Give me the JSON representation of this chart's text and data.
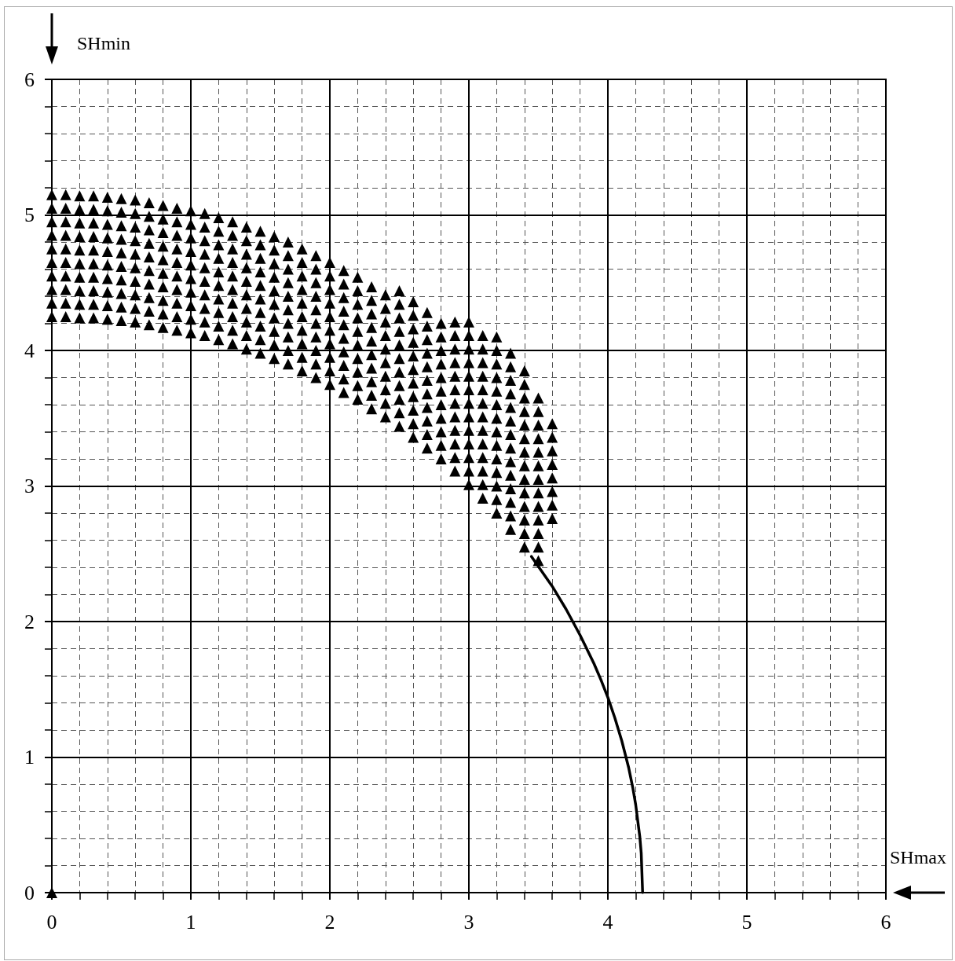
{
  "chart_data": {
    "type": "scatter",
    "xlabel": "SHmax",
    "ylabel": "SHmin",
    "xlim": [
      0,
      6
    ],
    "ylim": [
      0,
      6
    ],
    "xticks": [
      0,
      {
        "value": 0.2,
        "label": null
      },
      {
        "value": 0.4,
        "label": null
      },
      {
        "value": 0.6,
        "label": null
      },
      {
        "value": 0.8,
        "label": null
      },
      1,
      {
        "value": 1.2,
        "label": null
      },
      {
        "value": 1.4,
        "label": null
      },
      {
        "value": 1.6,
        "label": null
      },
      {
        "value": 1.8,
        "label": null
      },
      2,
      {
        "value": 2.2,
        "label": null
      },
      {
        "value": 2.4,
        "label": null
      },
      {
        "value": 2.6,
        "label": null
      },
      {
        "value": 2.8,
        "label": null
      },
      3,
      {
        "value": 3.2,
        "label": null
      },
      {
        "value": 3.4,
        "label": null
      },
      {
        "value": 3.6,
        "label": null
      },
      {
        "value": 3.8,
        "label": null
      },
      4,
      {
        "value": 4.2,
        "label": null
      },
      {
        "value": 4.4,
        "label": null
      },
      {
        "value": 4.6,
        "label": null
      },
      {
        "value": 4.8,
        "label": null
      },
      5,
      {
        "value": 5.2,
        "label": null
      },
      {
        "value": 5.4,
        "label": null
      },
      {
        "value": 5.6,
        "label": null
      },
      {
        "value": 5.8,
        "label": null
      },
      6
    ],
    "yticks": [
      0,
      {
        "value": 0.2,
        "label": null
      },
      {
        "value": 0.4,
        "label": null
      },
      {
        "value": 0.6,
        "label": null
      },
      {
        "value": 0.8,
        "label": null
      },
      1,
      {
        "value": 1.2,
        "label": null
      },
      {
        "value": 1.4,
        "label": null
      },
      {
        "value": 1.6,
        "label": null
      },
      {
        "value": 1.8,
        "label": null
      },
      2,
      {
        "value": 2.2,
        "label": null
      },
      {
        "value": 2.4,
        "label": null
      },
      {
        "value": 2.6,
        "label": null
      },
      {
        "value": 2.8,
        "label": null
      },
      3,
      {
        "value": 3.2,
        "label": null
      },
      {
        "value": 3.4,
        "label": null
      },
      {
        "value": 3.6,
        "label": null
      },
      {
        "value": 3.8,
        "label": null
      },
      4,
      {
        "value": 4.2,
        "label": null
      },
      {
        "value": 4.4,
        "label": null
      },
      {
        "value": 4.6,
        "label": null
      },
      {
        "value": 4.8,
        "label": null
      },
      5,
      {
        "value": 5.2,
        "label": null
      },
      {
        "value": 5.4,
        "label": null
      },
      {
        "value": 5.6,
        "label": null
      },
      {
        "value": 5.8,
        "label": null
      },
      6
    ],
    "grid": true,
    "series": [
      {
        "type": "line",
        "color": "#000000",
        "marker": "none",
        "line_style": "solid",
        "x": [
          3.45,
          3.6,
          3.7,
          3.8,
          3.9,
          3.95,
          4,
          4.05,
          4.1,
          4.15,
          4.18,
          4.2,
          4.23,
          4.24,
          4.25
        ],
        "values": [
          2.48,
          2.26,
          2.09,
          1.9,
          1.69,
          1.57,
          1.44,
          1.29,
          1.12,
          0.92,
          0.77,
          0.65,
          0.41,
          0.29,
          0
        ]
      },
      {
        "color": "#000000",
        "marker": "triangle",
        "x": [
          0,
          0,
          0,
          0,
          0,
          0,
          0,
          0,
          0,
          0,
          0,
          0.1,
          0.1,
          0.1,
          0.1,
          0.1,
          0.1,
          0.1,
          0.1,
          0.1,
          0.1,
          0.2,
          0.2,
          0.2,
          0.2,
          0.2,
          0.2,
          0.2,
          0.2,
          0.2,
          0.2,
          0.3,
          0.3,
          0.3,
          0.3,
          0.3,
          0.3,
          0.3,
          0.3,
          0.3,
          0.3,
          0.4,
          0.4,
          0.4,
          0.4,
          0.4,
          0.4,
          0.4,
          0.4,
          0.4,
          0.4,
          0.5,
          0.5,
          0.5,
          0.5,
          0.5,
          0.5,
          0.5,
          0.5,
          0.5,
          0.5,
          0.6,
          0.6,
          0.6,
          0.6,
          0.6,
          0.6,
          0.6,
          0.6,
          0.6,
          0.6,
          0.7,
          0.7,
          0.7,
          0.7,
          0.7,
          0.7,
          0.7,
          0.7,
          0.7,
          0.7,
          0.8,
          0.8,
          0.8,
          0.8,
          0.8,
          0.8,
          0.8,
          0.8,
          0.8,
          0.8,
          0.9,
          0.9,
          0.9,
          0.9,
          0.9,
          0.9,
          0.9,
          0.9,
          0.9,
          0.9,
          1,
          1,
          1,
          1,
          1,
          1,
          1,
          1,
          1,
          1,
          1.1,
          1.1,
          1.1,
          1.1,
          1.1,
          1.1,
          1.1,
          1.1,
          1.1,
          1.1,
          1.2,
          1.2,
          1.2,
          1.2,
          1.2,
          1.2,
          1.2,
          1.2,
          1.2,
          1.2,
          1.3,
          1.3,
          1.3,
          1.3,
          1.3,
          1.3,
          1.3,
          1.3,
          1.3,
          1.3,
          1.4,
          1.4,
          1.4,
          1.4,
          1.4,
          1.4,
          1.4,
          1.4,
          1.4,
          1.4,
          1.5,
          1.5,
          1.5,
          1.5,
          1.5,
          1.5,
          1.5,
          1.5,
          1.5,
          1.5,
          1.6,
          1.6,
          1.6,
          1.6,
          1.6,
          1.6,
          1.6,
          1.6,
          1.6,
          1.6,
          1.7,
          1.7,
          1.7,
          1.7,
          1.7,
          1.7,
          1.7,
          1.7,
          1.7,
          1.7,
          1.8,
          1.8,
          1.8,
          1.8,
          1.8,
          1.8,
          1.8,
          1.8,
          1.8,
          1.8,
          1.9,
          1.9,
          1.9,
          1.9,
          1.9,
          1.9,
          1.9,
          1.9,
          1.9,
          1.9,
          2,
          2,
          2,
          2,
          2,
          2,
          2,
          2,
          2,
          2,
          2.1,
          2.1,
          2.1,
          2.1,
          2.1,
          2.1,
          2.1,
          2.1,
          2.1,
          2.1,
          2.2,
          2.2,
          2.2,
          2.2,
          2.2,
          2.2,
          2.2,
          2.2,
          2.2,
          2.2,
          2.3,
          2.3,
          2.3,
          2.3,
          2.3,
          2.3,
          2.3,
          2.3,
          2.3,
          2.3,
          2.4,
          2.4,
          2.4,
          2.4,
          2.4,
          2.4,
          2.4,
          2.4,
          2.4,
          2.4,
          2.5,
          2.5,
          2.5,
          2.5,
          2.5,
          2.5,
          2.5,
          2.5,
          2.5,
          2.5,
          2.5,
          2.6,
          2.6,
          2.6,
          2.6,
          2.6,
          2.6,
          2.6,
          2.6,
          2.6,
          2.6,
          2.6,
          2.7,
          2.7,
          2.7,
          2.7,
          2.7,
          2.7,
          2.7,
          2.7,
          2.7,
          2.7,
          2.7,
          2.8,
          2.8,
          2.8,
          2.8,
          2.8,
          2.8,
          2.8,
          2.8,
          2.8,
          2.8,
          2.8,
          2.9,
          2.9,
          2.9,
          2.9,
          2.9,
          2.9,
          2.9,
          2.9,
          2.9,
          2.9,
          2.9,
          2.9,
          3,
          3,
          3,
          3,
          3,
          3,
          3,
          3,
          3,
          3,
          3,
          3,
          3,
          3.1,
          3.1,
          3.1,
          3.1,
          3.1,
          3.1,
          3.1,
          3.1,
          3.1,
          3.1,
          3.1,
          3.1,
          3.1,
          3.2,
          3.2,
          3.2,
          3.2,
          3.2,
          3.2,
          3.2,
          3.2,
          3.2,
          3.2,
          3.2,
          3.2,
          3.2,
          3.2,
          3.3,
          3.3,
          3.3,
          3.3,
          3.3,
          3.3,
          3.3,
          3.3,
          3.3,
          3.3,
          3.3,
          3.3,
          3.3,
          3.3,
          3.4,
          3.4,
          3.4,
          3.4,
          3.4,
          3.4,
          3.4,
          3.4,
          3.4,
          3.4,
          3.4,
          3.4,
          3.4,
          3.4,
          3.5,
          3.5,
          3.5,
          3.5,
          3.5,
          3.5,
          3.5,
          3.5,
          3.5,
          3.5,
          3.5,
          3.5,
          3.5,
          3.6,
          3.6,
          3.6,
          3.6,
          3.6,
          3.6,
          3.6,
          3.6
        ],
        "values": [
          0,
          4.25,
          4.35,
          4.45,
          4.55,
          4.65,
          4.75,
          4.85,
          4.95,
          5.05,
          5.15,
          4.25,
          4.35,
          4.45,
          4.55,
          4.65,
          4.75,
          4.85,
          4.95,
          5.05,
          5.15,
          4.24,
          4.34,
          4.44,
          4.54,
          4.64,
          4.74,
          4.84,
          4.94,
          5.04,
          5.14,
          4.24,
          4.34,
          4.44,
          4.54,
          4.64,
          4.74,
          4.84,
          4.94,
          5.04,
          5.14,
          4.23,
          4.33,
          4.43,
          4.53,
          4.63,
          4.73,
          4.83,
          4.93,
          5.03,
          5.13,
          4.22,
          4.32,
          4.42,
          4.52,
          4.62,
          4.72,
          4.82,
          4.92,
          5.02,
          5.12,
          4.21,
          4.31,
          4.41,
          4.51,
          4.61,
          4.71,
          4.81,
          4.91,
          5.01,
          5.11,
          4.19,
          4.29,
          4.39,
          4.49,
          4.59,
          4.69,
          4.79,
          4.89,
          4.99,
          5.09,
          4.17,
          4.27,
          4.37,
          4.47,
          4.57,
          4.67,
          4.77,
          4.87,
          4.97,
          5.07,
          4.15,
          4.25,
          4.35,
          4.45,
          4.55,
          4.65,
          4.75,
          4.85,
          4.95,
          5.05,
          4.13,
          4.23,
          4.33,
          4.43,
          4.53,
          4.63,
          4.73,
          4.83,
          4.93,
          5.03,
          4.11,
          4.21,
          4.31,
          4.41,
          4.51,
          4.61,
          4.71,
          4.81,
          4.91,
          5.01,
          4.08,
          4.18,
          4.28,
          4.38,
          4.48,
          4.58,
          4.68,
          4.78,
          4.88,
          4.98,
          4.05,
          4.15,
          4.25,
          4.35,
          4.45,
          4.55,
          4.65,
          4.75,
          4.85,
          4.95,
          4.01,
          4.11,
          4.21,
          4.31,
          4.41,
          4.51,
          4.61,
          4.71,
          4.81,
          4.91,
          3.98,
          4.08,
          4.18,
          4.28,
          4.38,
          4.48,
          4.58,
          4.68,
          4.78,
          4.88,
          3.94,
          4.04,
          4.14,
          4.24,
          4.34,
          4.44,
          4.54,
          4.64,
          4.74,
          4.84,
          3.9,
          4,
          4.1,
          4.2,
          4.3,
          4.4,
          4.5,
          4.6,
          4.7,
          4.8,
          3.85,
          3.95,
          4.05,
          4.15,
          4.25,
          4.35,
          4.45,
          4.55,
          4.65,
          4.75,
          3.8,
          3.9,
          4,
          4.1,
          4.2,
          4.3,
          4.4,
          4.5,
          4.6,
          4.7,
          3.75,
          3.85,
          3.95,
          4.05,
          4.15,
          4.25,
          4.35,
          4.45,
          4.55,
          4.65,
          3.69,
          3.79,
          3.89,
          3.99,
          4.09,
          4.19,
          4.29,
          4.39,
          4.49,
          4.59,
          3.64,
          3.74,
          3.84,
          3.94,
          4.04,
          4.14,
          4.24,
          4.34,
          4.44,
          4.54,
          3.57,
          3.67,
          3.77,
          3.87,
          3.97,
          4.07,
          4.17,
          4.27,
          4.37,
          4.47,
          3.51,
          3.61,
          3.71,
          3.81,
          3.91,
          4.01,
          4.11,
          4.21,
          4.31,
          4.41,
          3.44,
          3.54,
          3.64,
          3.74,
          3.84,
          3.94,
          4.04,
          4.14,
          4.24,
          4.34,
          4.44,
          3.36,
          3.46,
          3.56,
          3.66,
          3.76,
          3.86,
          3.96,
          4.06,
          4.16,
          4.26,
          4.36,
          3.28,
          3.38,
          3.48,
          3.58,
          3.68,
          3.78,
          3.88,
          3.98,
          4.08,
          4.18,
          4.28,
          3.2,
          3.3,
          3.4,
          3.5,
          3.6,
          3.7,
          3.8,
          3.9,
          4,
          4.1,
          4.2,
          3.11,
          3.21,
          3.31,
          3.41,
          3.51,
          3.61,
          3.71,
          3.81,
          3.91,
          4.01,
          4.11,
          4.21,
          3.01,
          3.11,
          3.21,
          3.31,
          3.41,
          3.51,
          3.61,
          3.71,
          3.81,
          3.91,
          4.01,
          4.11,
          4.21,
          2.91,
          3.01,
          3.11,
          3.21,
          3.31,
          3.41,
          3.51,
          3.61,
          3.71,
          3.81,
          3.91,
          4.01,
          4.11,
          2.8,
          2.9,
          3,
          3.1,
          3.2,
          3.3,
          3.4,
          3.5,
          3.6,
          3.7,
          3.8,
          3.9,
          4,
          4.1,
          2.68,
          2.78,
          2.88,
          2.98,
          3.08,
          3.18,
          3.28,
          3.38,
          3.48,
          3.58,
          3.68,
          3.78,
          3.88,
          3.98,
          2.55,
          2.65,
          2.75,
          2.85,
          2.95,
          3.05,
          3.15,
          3.25,
          3.35,
          3.45,
          3.55,
          3.65,
          3.75,
          3.85,
          2.45,
          2.55,
          2.65,
          2.75,
          2.85,
          2.95,
          3.05,
          3.15,
          3.25,
          3.35,
          3.45,
          3.55,
          3.65,
          2.76,
          2.86,
          2.96,
          3.06,
          3.16,
          3.26,
          3.36,
          3.46
        ]
      }
    ]
  }
}
